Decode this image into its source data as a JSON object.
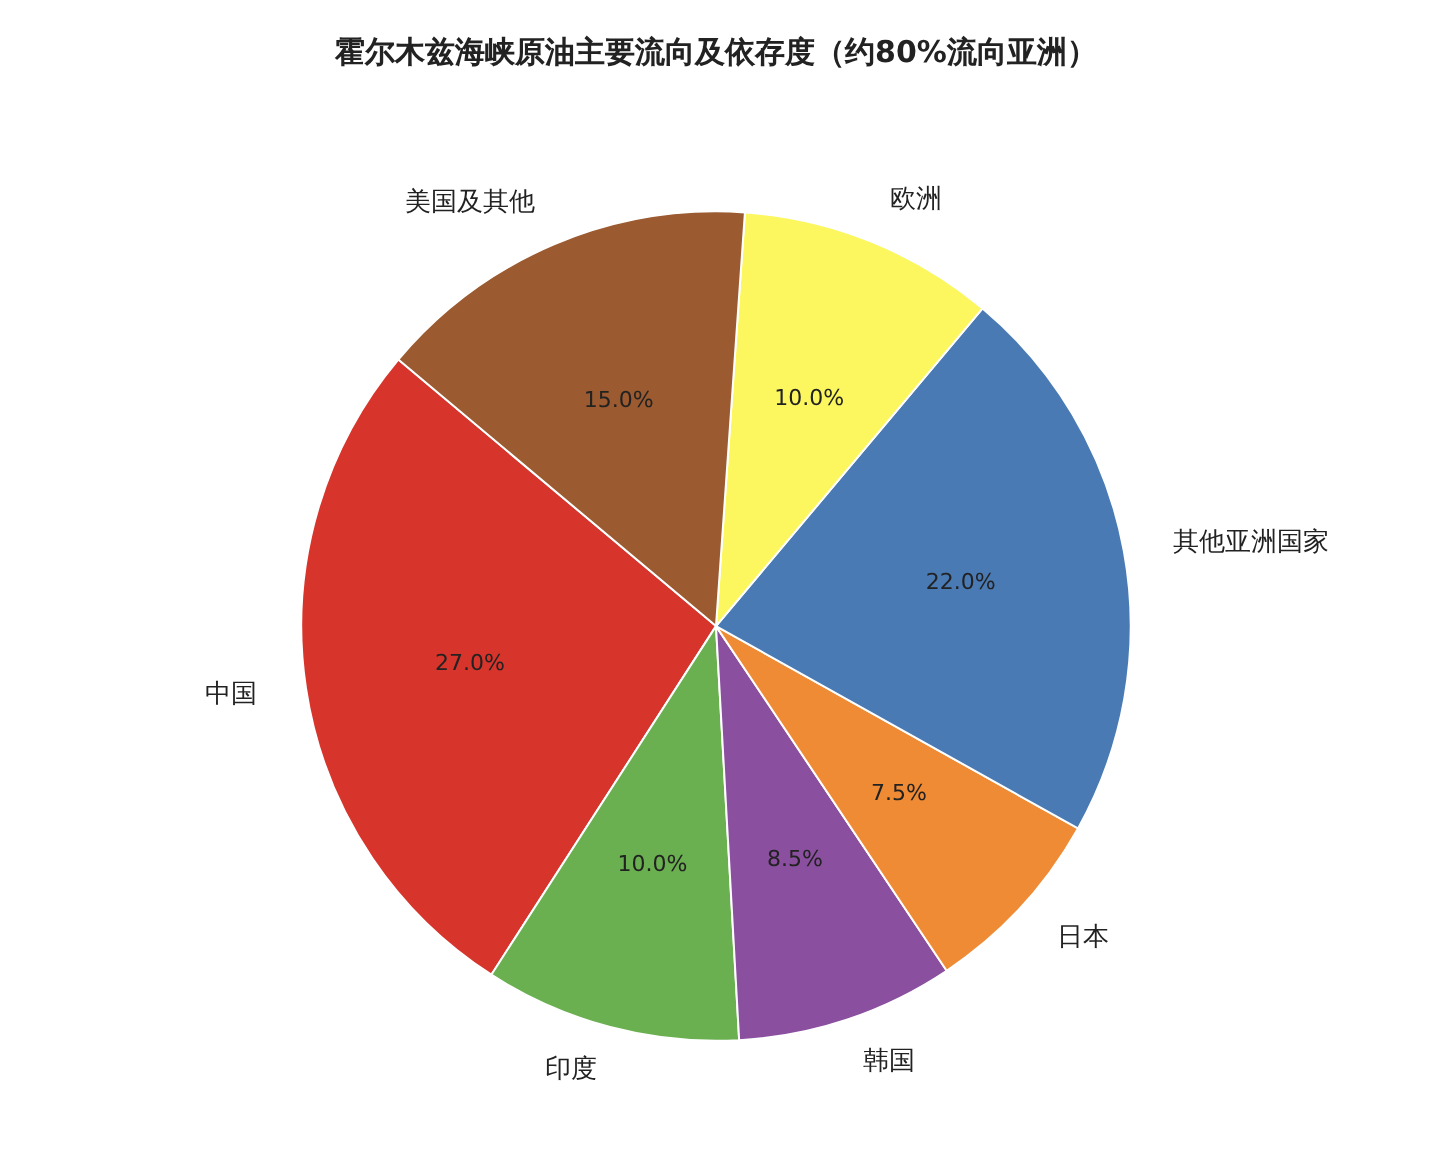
{
  "chart_data": {
    "type": "pie",
    "title": "霍尔木兹海峡原油主要流向及依存度（约80%流向亚洲）",
    "categories": [
      "中国",
      "印度",
      "韩国",
      "日本",
      "其他亚洲国家",
      "欧洲",
      "美国及其他"
    ],
    "values": [
      27.0,
      10.0,
      8.5,
      7.5,
      22.0,
      10.0,
      15.0
    ],
    "colors": [
      "#d7352b",
      "#6aaf50",
      "#8b4fa0",
      "#ef8b34",
      "#4a7ab4",
      "#fcf75e",
      "#9b5a2f"
    ],
    "value_labels": [
      "27.0%",
      "10.0%",
      "8.5%",
      "7.5%",
      "22.0%",
      "10.0%",
      "15.0%"
    ]
  }
}
